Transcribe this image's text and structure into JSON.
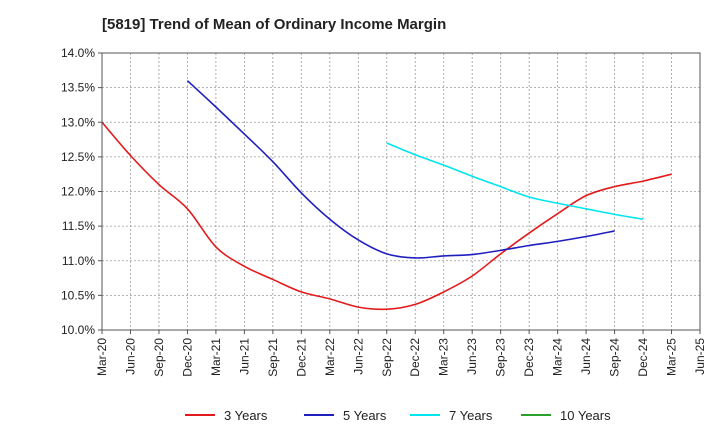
{
  "chart_data": {
    "type": "line",
    "title": "[5819]  Trend of Mean of Ordinary Income Margin",
    "xlabel": "",
    "ylabel": "",
    "ylim": [
      10.0,
      14.0
    ],
    "yticks": [
      "10.0%",
      "10.5%",
      "11.0%",
      "11.5%",
      "12.0%",
      "12.5%",
      "13.0%",
      "13.5%",
      "14.0%"
    ],
    "categories": [
      "Mar-20",
      "Jun-20",
      "Sep-20",
      "Dec-20",
      "Mar-21",
      "Jun-21",
      "Sep-21",
      "Dec-21",
      "Mar-22",
      "Jun-22",
      "Sep-22",
      "Dec-22",
      "Mar-23",
      "Jun-23",
      "Sep-23",
      "Dec-23",
      "Mar-24",
      "Jun-24",
      "Sep-24",
      "Dec-24",
      "Mar-25",
      "Jun-25"
    ],
    "grid": true,
    "legend_position": "bottom",
    "series": [
      {
        "name": "3 Years",
        "color": "#e31a1c",
        "values": [
          13.0,
          12.52,
          12.1,
          11.75,
          11.2,
          10.92,
          10.73,
          10.55,
          10.45,
          10.33,
          10.3,
          10.37,
          10.55,
          10.78,
          11.1,
          11.4,
          11.68,
          11.94,
          12.07,
          12.15,
          12.25,
          null
        ]
      },
      {
        "name": "5 Years",
        "color": "#1f1fbf",
        "values": [
          null,
          null,
          null,
          13.6,
          13.22,
          12.83,
          12.43,
          11.98,
          11.6,
          11.3,
          11.1,
          11.04,
          11.07,
          11.09,
          11.15,
          11.22,
          11.28,
          11.35,
          11.43,
          null,
          null,
          null
        ]
      },
      {
        "name": "7 Years",
        "color": "#00e5ee",
        "values": [
          null,
          null,
          null,
          null,
          null,
          null,
          null,
          null,
          null,
          null,
          12.7,
          12.53,
          12.38,
          12.22,
          12.07,
          11.92,
          11.83,
          11.75,
          11.67,
          11.6,
          null,
          null
        ]
      },
      {
        "name": "10 Years",
        "color": "#2ca02c",
        "values": [
          null,
          null,
          null,
          null,
          null,
          null,
          null,
          null,
          null,
          null,
          null,
          null,
          null,
          null,
          null,
          null,
          null,
          null,
          null,
          null,
          null,
          null
        ]
      }
    ]
  }
}
